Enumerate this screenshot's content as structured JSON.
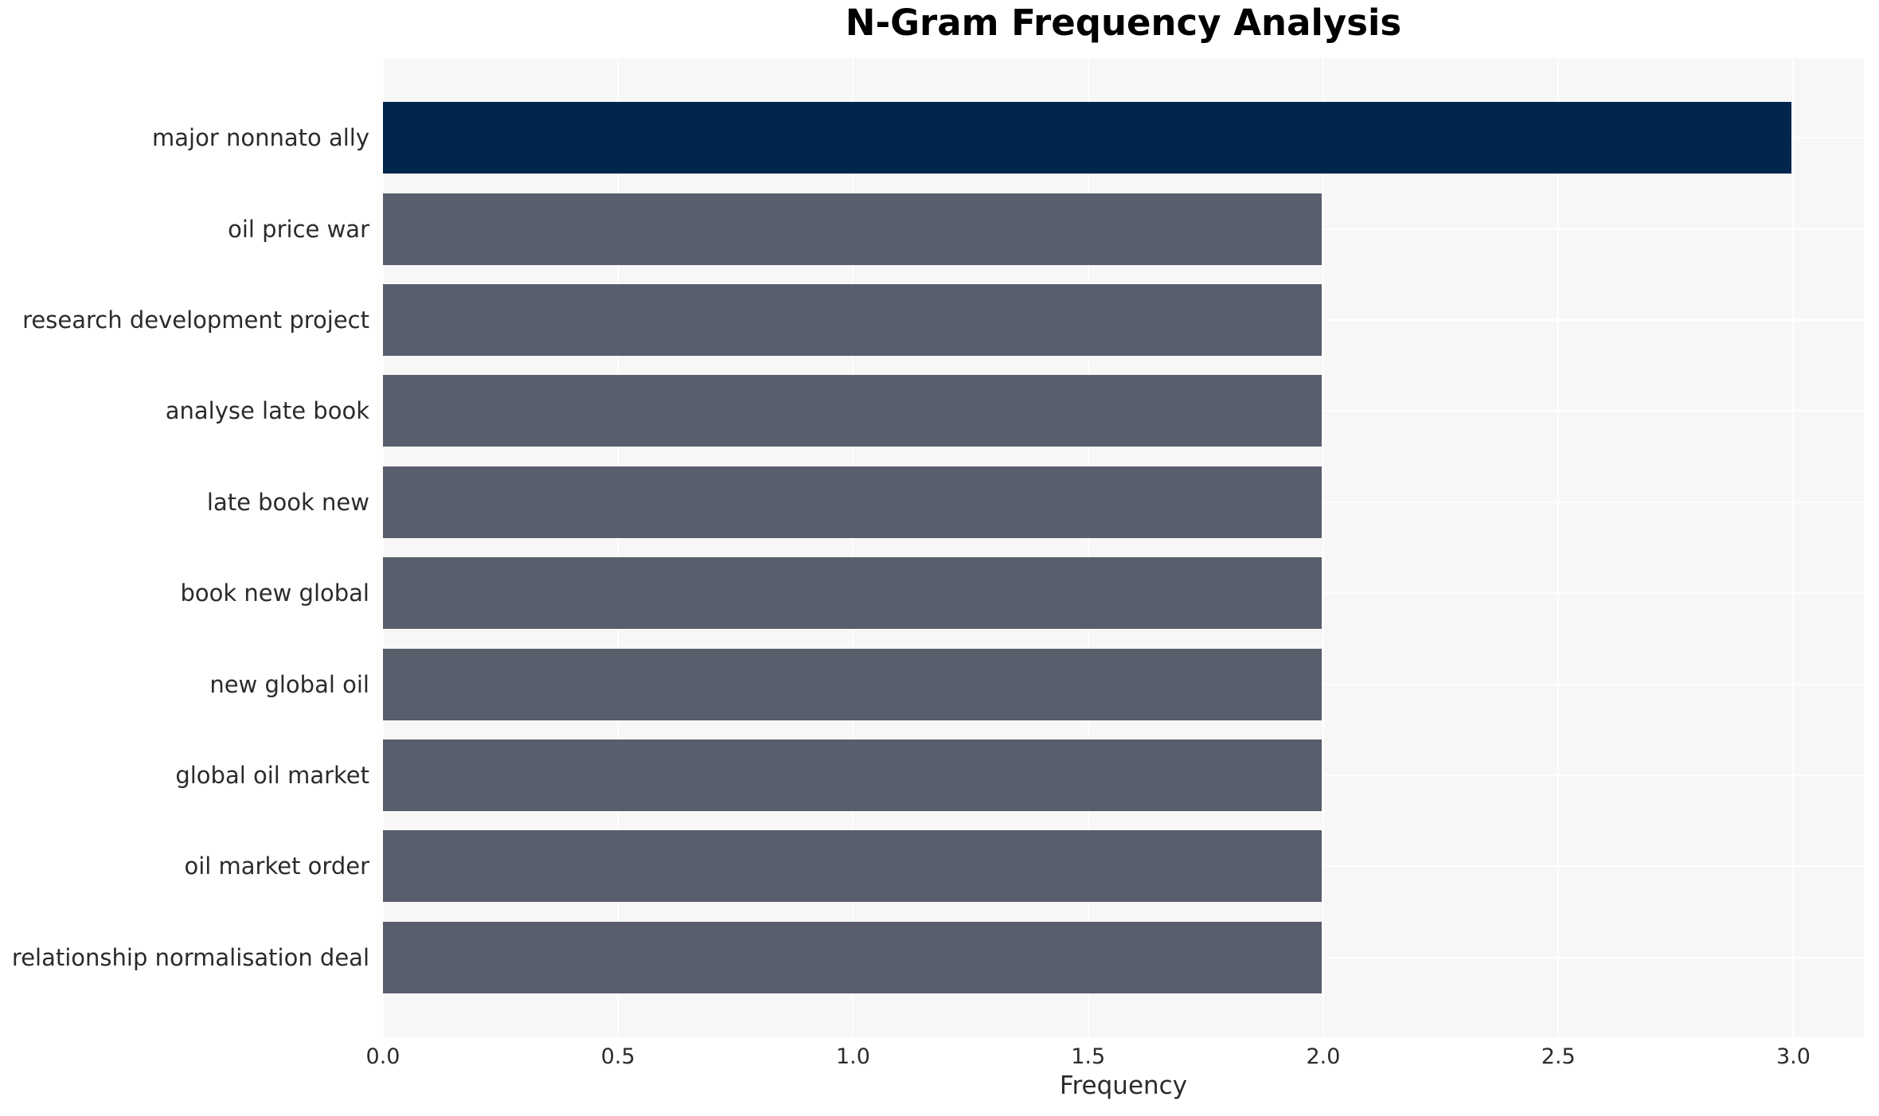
{
  "page": {
    "background": "#ffffff"
  },
  "chart_data": {
    "type": "bar",
    "orientation": "horizontal",
    "title": "N-Gram Frequency Analysis",
    "xlabel": "Frequency",
    "ylabel": "",
    "categories": [
      "major nonnato ally",
      "oil price war",
      "research development project",
      "analyse late book",
      "late book new",
      "book new global",
      "new global oil",
      "global oil market",
      "oil market order",
      "relationship normalisation deal"
    ],
    "values": [
      3,
      2,
      2,
      2,
      2,
      2,
      2,
      2,
      2,
      2
    ],
    "xtick_labels": [
      "0.0",
      "0.5",
      "1.0",
      "1.5",
      "2.0",
      "2.5",
      "3.0"
    ],
    "xtick_values": [
      0,
      0.5,
      1,
      1.5,
      2,
      2.5,
      3
    ],
    "xlim": [
      0,
      3.15
    ],
    "grid": true,
    "legend": false,
    "highlight_index": 0,
    "colors": {
      "bar_highlight": "#02254e",
      "bar_default": "#585e6c",
      "plot_background": "#f7f7f7",
      "gridline": "#ffffff",
      "tick_text": "#2b2b2b",
      "title_text": "#000000"
    }
  }
}
